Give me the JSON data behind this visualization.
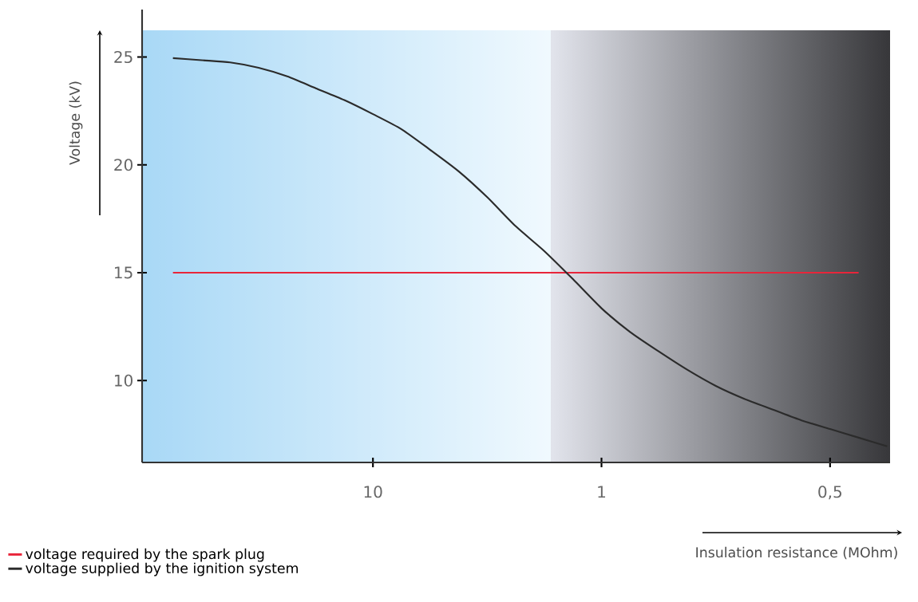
{
  "chart_data": {
    "type": "line",
    "xlabel": "Insulation resistance (MOhm)",
    "ylabel": "Voltage (kV)",
    "categories": [
      null,
      null,
      null,
      null,
      null,
      null,
      null,
      "10",
      null,
      null,
      null,
      null,
      null,
      null,
      null,
      "1",
      null,
      null,
      null,
      null,
      null,
      null,
      null,
      "0,5",
      null,
      null
    ],
    "ylim": [
      6.2,
      27.2
    ],
    "yticks": [
      10,
      15,
      20,
      25
    ],
    "legend": "bottom left",
    "series": [
      {
        "name": "voltage required by the spark plug",
        "color": "#e8253a",
        "values": [
          15,
          15,
          15,
          15,
          15,
          15,
          15,
          15,
          15,
          15,
          15,
          15,
          15,
          15,
          15,
          15,
          15,
          15,
          15,
          15,
          15,
          15,
          15,
          15,
          15,
          null
        ]
      },
      {
        "name": "voltage supplied by the ignition system",
        "color": "#2b2b2b",
        "values": [
          24.95,
          24.85,
          24.75,
          24.5,
          24.1,
          23.55,
          23.0,
          22.35,
          21.65,
          20.7,
          19.7,
          18.5,
          17.15,
          16.0,
          14.7,
          13.35,
          12.25,
          11.35,
          10.5,
          9.75,
          9.15,
          8.65,
          8.15,
          7.75,
          7.35,
          6.95
        ]
      }
    ]
  }
}
